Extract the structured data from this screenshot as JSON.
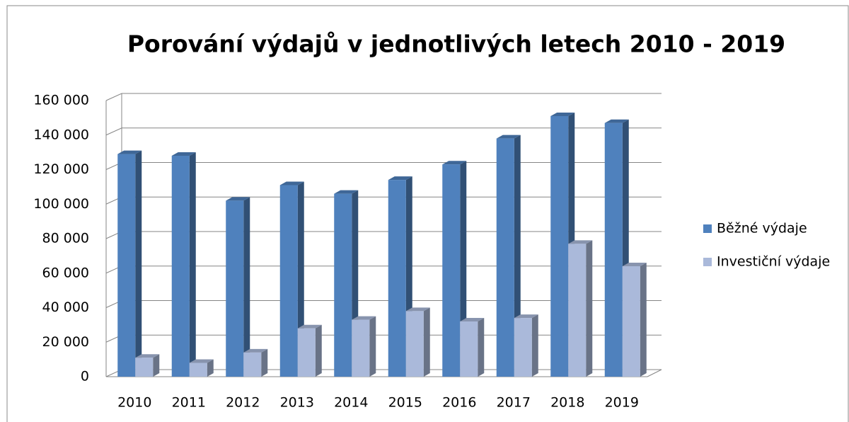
{
  "chart_data": {
    "type": "bar3d",
    "title": "Porování výdajů v jednotlivých letech 2010 - 2019",
    "categories": [
      "2010",
      "2011",
      "2012",
      "2013",
      "2014",
      "2015",
      "2016",
      "2017",
      "2018",
      "2019"
    ],
    "series": [
      {
        "name": "Běžné výdaje",
        "color": "#4f81bd",
        "values": [
          129000,
          128000,
          102000,
          111000,
          106000,
          114000,
          123000,
          138000,
          151000,
          147000
        ]
      },
      {
        "name": "Investiční výdaje",
        "color": "#aab9da",
        "values": [
          11000,
          8000,
          14000,
          28000,
          33000,
          38000,
          32000,
          34000,
          77000,
          64000
        ]
      }
    ],
    "ylim": [
      0,
      160000
    ],
    "yticks": [
      {
        "value": 0,
        "label": "0"
      },
      {
        "value": 20000,
        "label": "20 000"
      },
      {
        "value": 40000,
        "label": "40 000"
      },
      {
        "value": 60000,
        "label": "60 000"
      },
      {
        "value": 80000,
        "label": "80 000"
      },
      {
        "value": 100000,
        "label": "100 000"
      },
      {
        "value": 120000,
        "label": "120 000"
      },
      {
        "value": 140000,
        "label": "140 000"
      },
      {
        "value": 160000,
        "label": "160 000"
      }
    ],
    "grid": true,
    "legend": "right"
  }
}
